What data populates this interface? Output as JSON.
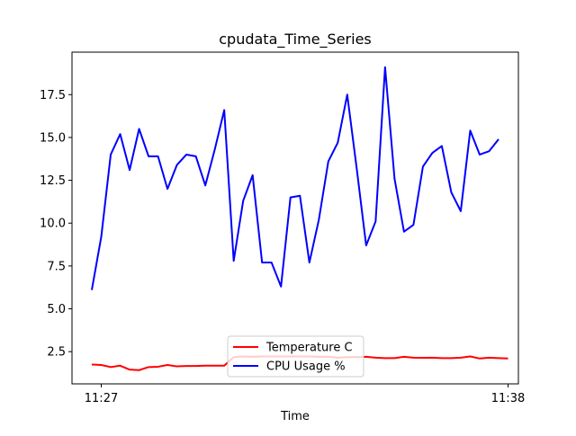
{
  "chart_data": {
    "type": "line",
    "title": "cpudata_Time_Series",
    "xlabel": "Time",
    "ylabel": "",
    "x_ticks": [
      "11:27",
      "11:38"
    ],
    "x_ticks_index": [
      1,
      44
    ],
    "y_ticks": [
      "2.5",
      "5.0",
      "7.5",
      "10.0",
      "12.5",
      "15.0",
      "17.5"
    ],
    "ylim": [
      0.62,
      19.98
    ],
    "legend": "lower center",
    "grid": false,
    "series": [
      {
        "name": "Temperature C",
        "color": "#ff0000",
        "values": [
          1.75,
          1.72,
          1.6,
          1.68,
          1.45,
          1.42,
          1.6,
          1.62,
          1.72,
          1.64,
          1.66,
          1.66,
          1.68,
          1.68,
          1.68,
          2.18,
          2.22,
          2.2,
          2.22,
          2.22,
          2.22,
          2.22,
          2.22,
          2.22,
          2.2,
          2.2,
          2.15,
          2.18,
          2.18,
          2.2,
          2.15,
          2.12,
          2.12,
          2.2,
          2.15,
          2.14,
          2.15,
          2.12,
          2.12,
          2.15,
          2.22,
          2.1,
          2.15,
          2.12,
          2.1
        ]
      },
      {
        "name": "CPU Usage %",
        "color": "#0000ff",
        "values": [
          6.1,
          9.2,
          14.0,
          15.2,
          13.1,
          15.5,
          13.9,
          13.9,
          12.0,
          13.4,
          14.0,
          13.9,
          12.2,
          14.3,
          16.6,
          7.8,
          11.3,
          12.8,
          7.7,
          7.7,
          6.3,
          11.5,
          11.6,
          7.7,
          10.2,
          13.6,
          14.7,
          17.5,
          13.2,
          8.7,
          10.1,
          19.1,
          12.6,
          9.5,
          9.9,
          13.3,
          14.1,
          14.5,
          11.8,
          10.7,
          15.4,
          14.0,
          14.2,
          14.9
        ]
      }
    ]
  }
}
